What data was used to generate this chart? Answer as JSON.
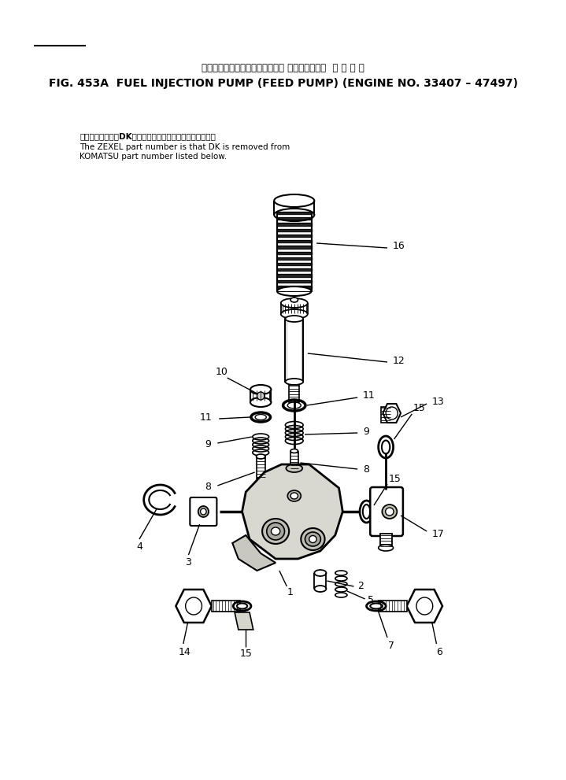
{
  "title_jp": "フェエルインジェクションポンプ フィードポンプ  適 用 号 機",
  "title_en": "FIG. 453A  FUEL INJECTION PUMP (FEED PUMP) (ENGINE NO. 33407 – 47497)",
  "note_jp": "品番のメーカ記号DKを除いたものがゼクセルの品番です。",
  "note_en1": "The ZEXEL part number is that DK is removed from",
  "note_en2": "KOMATSU part number listed below.",
  "bg_color": "#ffffff",
  "line_color": "#000000",
  "text_color": "#000000"
}
